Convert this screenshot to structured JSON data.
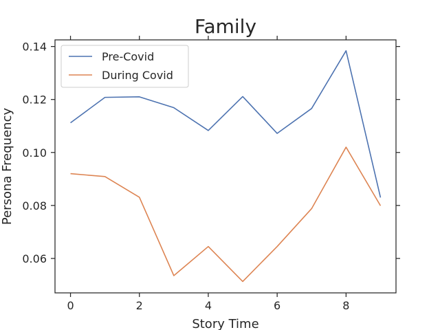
{
  "chart_data": {
    "type": "line",
    "title": "Family",
    "xlabel": "Story Time",
    "ylabel": "Persona Frequency",
    "x": [
      0,
      1,
      2,
      3,
      4,
      5,
      6,
      7,
      8,
      9
    ],
    "xlim": [
      -0.45,
      9.45
    ],
    "ylim": [
      0.047,
      0.1425
    ],
    "xticks": [
      0,
      2,
      4,
      6,
      8
    ],
    "xtick_labels": [
      "0",
      "2",
      "4",
      "6",
      "8"
    ],
    "yticks": [
      0.06,
      0.08,
      0.1,
      0.12,
      0.14
    ],
    "ytick_labels": [
      "0.06",
      "0.08",
      "0.10",
      "0.12",
      "0.14"
    ],
    "grid": false,
    "legend_position": "top-left",
    "series": [
      {
        "name": "Pre-Covid",
        "color": "#4c72b0",
        "values": [
          0.1112,
          0.1208,
          0.121,
          0.1169,
          0.1083,
          0.1211,
          0.1072,
          0.1166,
          0.1384,
          0.083
        ]
      },
      {
        "name": "During Covid",
        "color": "#dd8452",
        "values": [
          0.092,
          0.0909,
          0.0831,
          0.0535,
          0.0645,
          0.0513,
          0.0645,
          0.0788,
          0.102,
          0.0799
        ]
      }
    ]
  }
}
